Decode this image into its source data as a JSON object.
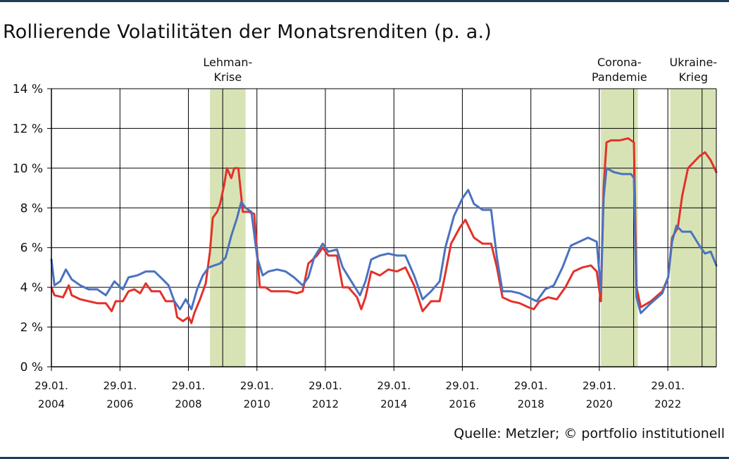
{
  "title": "Rollierende Volatilitäten der Monatsrenditen (p. a.)",
  "source": "Quelle: Metzler; © portfolio institutionell",
  "colors": {
    "red": "#e3312b",
    "blue": "#4a72c0",
    "band": "#d8e3b5",
    "rule": "#1f3b5a",
    "grid": "#000000"
  },
  "chart_data": {
    "type": "line",
    "xlim": [
      "2004-01-29",
      "2023-06-30"
    ],
    "ylim": [
      0,
      14
    ],
    "y_ticks": [
      "0 %",
      "2 %",
      "4 %",
      "6 %",
      "8 %",
      "10 %",
      "12 %",
      "14 %"
    ],
    "x_ticks": [
      {
        "date": "2004-01-29",
        "line1": "29.01.",
        "line2": "2004"
      },
      {
        "date": "2006-01-29",
        "line1": "29.01.",
        "line2": "2006"
      },
      {
        "date": "2008-01-29",
        "line1": "29.01.",
        "line2": "2008"
      },
      {
        "date": "2010-01-29",
        "line1": "29.01.",
        "line2": "2010"
      },
      {
        "date": "2012-01-29",
        "line1": "29.01.",
        "line2": "2012"
      },
      {
        "date": "2014-01-29",
        "line1": "29.01.",
        "line2": "2014"
      },
      {
        "date": "2016-01-29",
        "line1": "29.01.",
        "line2": "2016"
      },
      {
        "date": "2018-01-29",
        "line1": "29.01.",
        "line2": "2018"
      },
      {
        "date": "2020-01-29",
        "line1": "29.01.",
        "line2": "2020"
      },
      {
        "date": "2022-01-29",
        "line1": "29.01.",
        "line2": "2022"
      }
    ],
    "extra_gridlines": [
      "2009-01-29",
      "2021-01-29",
      "2023-01-29"
    ],
    "grid": true,
    "shaded_periods": [
      {
        "start": "2008-09-15",
        "end": "2009-09-30",
        "label_lines": [
          "Lehman-",
          "Krise"
        ]
      },
      {
        "start": "2020-02-15",
        "end": "2021-03-15",
        "label_lines": [
          "Corona-",
          "Pandemie"
        ]
      },
      {
        "start": "2022-02-24",
        "end": "2023-06-30",
        "label_lines": [
          "Ukraine-",
          "Krieg"
        ]
      }
    ],
    "series": [
      {
        "color": "#e3312b",
        "points": [
          [
            "2004-01-29",
            4.0
          ],
          [
            "2004-03-01",
            3.6
          ],
          [
            "2004-06-01",
            3.5
          ],
          [
            "2004-08-01",
            4.1
          ],
          [
            "2004-09-01",
            3.6
          ],
          [
            "2004-12-01",
            3.4
          ],
          [
            "2005-03-01",
            3.3
          ],
          [
            "2005-06-01",
            3.2
          ],
          [
            "2005-09-01",
            3.2
          ],
          [
            "2005-11-01",
            2.8
          ],
          [
            "2005-12-15",
            3.3
          ],
          [
            "2006-03-01",
            3.3
          ],
          [
            "2006-05-01",
            3.8
          ],
          [
            "2006-07-01",
            3.9
          ],
          [
            "2006-09-01",
            3.7
          ],
          [
            "2006-11-01",
            4.2
          ],
          [
            "2007-01-01",
            3.8
          ],
          [
            "2007-04-01",
            3.8
          ],
          [
            "2007-06-01",
            3.3
          ],
          [
            "2007-09-01",
            3.3
          ],
          [
            "2007-10-01",
            2.5
          ],
          [
            "2007-12-01",
            2.3
          ],
          [
            "2008-02-01",
            2.5
          ],
          [
            "2008-03-01",
            2.2
          ],
          [
            "2008-04-01",
            2.7
          ],
          [
            "2008-06-01",
            3.4
          ],
          [
            "2008-08-01",
            4.2
          ],
          [
            "2008-09-15",
            5.8
          ],
          [
            "2008-10-15",
            7.5
          ],
          [
            "2008-12-01",
            7.8
          ],
          [
            "2009-01-01",
            8.2
          ],
          [
            "2009-02-15",
            9.2
          ],
          [
            "2009-03-15",
            10.0
          ],
          [
            "2009-05-01",
            9.5
          ],
          [
            "2009-06-01",
            10.0
          ],
          [
            "2009-07-15",
            10.0
          ],
          [
            "2009-09-01",
            7.8
          ],
          [
            "2009-11-01",
            7.8
          ],
          [
            "2010-01-01",
            7.7
          ],
          [
            "2010-03-01",
            4.0
          ],
          [
            "2010-05-01",
            4.0
          ],
          [
            "2010-07-01",
            3.8
          ],
          [
            "2010-10-01",
            3.8
          ],
          [
            "2011-01-01",
            3.8
          ],
          [
            "2011-04-01",
            3.7
          ],
          [
            "2011-06-01",
            3.8
          ],
          [
            "2011-08-01",
            5.2
          ],
          [
            "2011-11-01",
            5.6
          ],
          [
            "2012-01-01",
            6.0
          ],
          [
            "2012-03-01",
            5.6
          ],
          [
            "2012-06-01",
            5.6
          ],
          [
            "2012-08-01",
            4.0
          ],
          [
            "2012-10-01",
            4.0
          ],
          [
            "2013-01-01",
            3.5
          ],
          [
            "2013-02-15",
            2.9
          ],
          [
            "2013-04-01",
            3.5
          ],
          [
            "2013-06-01",
            4.8
          ],
          [
            "2013-09-01",
            4.6
          ],
          [
            "2013-12-01",
            4.9
          ],
          [
            "2014-03-01",
            4.8
          ],
          [
            "2014-06-01",
            5.0
          ],
          [
            "2014-09-01",
            4.1
          ],
          [
            "2014-12-01",
            2.8
          ],
          [
            "2015-03-01",
            3.3
          ],
          [
            "2015-06-01",
            3.3
          ],
          [
            "2015-08-01",
            4.7
          ],
          [
            "2015-10-01",
            6.2
          ],
          [
            "2016-01-01",
            7.0
          ],
          [
            "2016-03-01",
            7.4
          ],
          [
            "2016-06-01",
            6.5
          ],
          [
            "2016-09-01",
            6.2
          ],
          [
            "2016-12-01",
            6.2
          ],
          [
            "2017-02-01",
            5.0
          ],
          [
            "2017-04-01",
            3.5
          ],
          [
            "2017-07-01",
            3.3
          ],
          [
            "2017-10-01",
            3.2
          ],
          [
            "2018-01-01",
            3.0
          ],
          [
            "2018-03-01",
            2.9
          ],
          [
            "2018-05-01",
            3.3
          ],
          [
            "2018-08-01",
            3.5
          ],
          [
            "2018-11-01",
            3.4
          ],
          [
            "2019-02-01",
            4.0
          ],
          [
            "2019-05-01",
            4.8
          ],
          [
            "2019-08-01",
            5.0
          ],
          [
            "2019-11-01",
            5.1
          ],
          [
            "2020-01-01",
            4.8
          ],
          [
            "2020-02-15",
            3.3
          ],
          [
            "2020-03-15",
            9.0
          ],
          [
            "2020-04-15",
            11.3
          ],
          [
            "2020-06-01",
            11.4
          ],
          [
            "2020-09-01",
            11.4
          ],
          [
            "2020-12-01",
            11.5
          ],
          [
            "2021-02-01",
            11.3
          ],
          [
            "2021-03-01",
            4.0
          ],
          [
            "2021-04-15",
            3.0
          ],
          [
            "2021-08-01",
            3.3
          ],
          [
            "2021-12-01",
            3.8
          ],
          [
            "2022-02-01",
            4.5
          ],
          [
            "2022-03-15",
            6.5
          ],
          [
            "2022-05-15",
            7.0
          ],
          [
            "2022-07-01",
            8.6
          ],
          [
            "2022-09-01",
            10.0
          ],
          [
            "2022-11-01",
            10.3
          ],
          [
            "2023-01-01",
            10.6
          ],
          [
            "2023-03-01",
            10.8
          ],
          [
            "2023-05-01",
            10.4
          ],
          [
            "2023-06-30",
            9.8
          ]
        ]
      },
      {
        "color": "#4a72c0",
        "points": [
          [
            "2004-01-29",
            5.4
          ],
          [
            "2004-03-01",
            4.1
          ],
          [
            "2004-05-01",
            4.3
          ],
          [
            "2004-07-01",
            4.9
          ],
          [
            "2004-09-01",
            4.4
          ],
          [
            "2004-12-01",
            4.1
          ],
          [
            "2005-03-01",
            3.9
          ],
          [
            "2005-06-01",
            3.9
          ],
          [
            "2005-09-01",
            3.6
          ],
          [
            "2005-12-01",
            4.3
          ],
          [
            "2006-03-01",
            3.9
          ],
          [
            "2006-05-01",
            4.5
          ],
          [
            "2006-08-01",
            4.6
          ],
          [
            "2006-11-01",
            4.8
          ],
          [
            "2007-02-01",
            4.8
          ],
          [
            "2007-05-01",
            4.4
          ],
          [
            "2007-07-01",
            4.1
          ],
          [
            "2007-09-01",
            3.3
          ],
          [
            "2007-11-01",
            2.9
          ],
          [
            "2008-01-01",
            3.4
          ],
          [
            "2008-03-01",
            2.9
          ],
          [
            "2008-05-01",
            3.9
          ],
          [
            "2008-07-01",
            4.6
          ],
          [
            "2008-09-01",
            5.0
          ],
          [
            "2008-11-01",
            5.1
          ],
          [
            "2009-01-01",
            5.2
          ],
          [
            "2009-03-01",
            5.5
          ],
          [
            "2009-05-01",
            6.6
          ],
          [
            "2009-07-01",
            7.5
          ],
          [
            "2009-08-15",
            8.3
          ],
          [
            "2009-10-01",
            8.0
          ],
          [
            "2009-12-01",
            7.8
          ],
          [
            "2010-02-01",
            5.5
          ],
          [
            "2010-04-01",
            4.6
          ],
          [
            "2010-06-01",
            4.8
          ],
          [
            "2010-09-01",
            4.9
          ],
          [
            "2010-12-01",
            4.8
          ],
          [
            "2011-03-01",
            4.5
          ],
          [
            "2011-06-01",
            4.1
          ],
          [
            "2011-08-01",
            4.5
          ],
          [
            "2011-10-01",
            5.5
          ],
          [
            "2012-01-01",
            6.2
          ],
          [
            "2012-03-01",
            5.8
          ],
          [
            "2012-06-01",
            5.9
          ],
          [
            "2012-08-01",
            5.0
          ],
          [
            "2012-11-01",
            4.3
          ],
          [
            "2013-02-01",
            3.6
          ],
          [
            "2013-04-01",
            4.3
          ],
          [
            "2013-06-01",
            5.4
          ],
          [
            "2013-09-01",
            5.6
          ],
          [
            "2013-12-01",
            5.7
          ],
          [
            "2014-03-01",
            5.6
          ],
          [
            "2014-06-01",
            5.6
          ],
          [
            "2014-09-01",
            4.6
          ],
          [
            "2014-12-01",
            3.4
          ],
          [
            "2015-03-01",
            3.8
          ],
          [
            "2015-06-01",
            4.3
          ],
          [
            "2015-08-01",
            6.0
          ],
          [
            "2015-11-01",
            7.6
          ],
          [
            "2016-02-01",
            8.5
          ],
          [
            "2016-04-01",
            8.9
          ],
          [
            "2016-06-01",
            8.2
          ],
          [
            "2016-09-01",
            7.9
          ],
          [
            "2016-12-01",
            7.9
          ],
          [
            "2017-02-01",
            5.5
          ],
          [
            "2017-04-01",
            3.8
          ],
          [
            "2017-07-01",
            3.8
          ],
          [
            "2017-10-01",
            3.7
          ],
          [
            "2018-01-01",
            3.5
          ],
          [
            "2018-04-01",
            3.3
          ],
          [
            "2018-07-01",
            3.9
          ],
          [
            "2018-10-01",
            4.1
          ],
          [
            "2019-01-01",
            5.0
          ],
          [
            "2019-04-01",
            6.1
          ],
          [
            "2019-07-01",
            6.3
          ],
          [
            "2019-10-01",
            6.5
          ],
          [
            "2020-01-01",
            6.3
          ],
          [
            "2020-02-15",
            3.8
          ],
          [
            "2020-03-15",
            8.5
          ],
          [
            "2020-04-15",
            10.0
          ],
          [
            "2020-07-01",
            9.8
          ],
          [
            "2020-10-01",
            9.7
          ],
          [
            "2021-01-01",
            9.7
          ],
          [
            "2021-02-01",
            9.5
          ],
          [
            "2021-03-01",
            3.5
          ],
          [
            "2021-04-15",
            2.7
          ],
          [
            "2021-08-01",
            3.2
          ],
          [
            "2021-12-01",
            3.7
          ],
          [
            "2022-02-01",
            4.5
          ],
          [
            "2022-03-15",
            6.3
          ],
          [
            "2022-05-01",
            7.1
          ],
          [
            "2022-07-01",
            6.8
          ],
          [
            "2022-10-01",
            6.8
          ],
          [
            "2023-01-01",
            6.1
          ],
          [
            "2023-03-01",
            5.7
          ],
          [
            "2023-05-01",
            5.8
          ],
          [
            "2023-06-30",
            5.1
          ]
        ]
      }
    ]
  }
}
